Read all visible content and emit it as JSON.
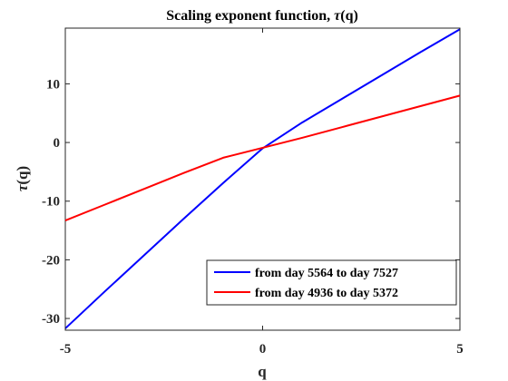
{
  "chart_data": {
    "type": "line",
    "title": "Scaling exponent function, τ(q)",
    "xlabel": "q",
    "ylabel": "τ(q)",
    "xlim": [
      -5,
      5
    ],
    "ylim": [
      -32,
      19.5
    ],
    "xticks": [
      -5,
      0,
      5
    ],
    "xtick_labels": [
      "-5",
      "0",
      "5"
    ],
    "yticks": [
      -30,
      -20,
      -10,
      0,
      10
    ],
    "ytick_labels": [
      "-30",
      "-20",
      "-10",
      "0",
      "10"
    ],
    "grid": false,
    "legend_position": "bottom-right",
    "series": [
      {
        "name": "from day 5564 to day 7527",
        "color": "#0000ff",
        "x": [
          -5,
          -4,
          -3,
          -2,
          -1,
          0,
          1,
          2,
          3,
          4,
          5
        ],
        "y": [
          -31.7,
          -25.4,
          -19.2,
          -13.0,
          -6.9,
          -1.0,
          3.4,
          7.4,
          11.4,
          15.4,
          19.3
        ]
      },
      {
        "name": "from day 4936 to day 5372",
        "color": "#ff0000",
        "x": [
          -5,
          -4,
          -3,
          -2,
          -1,
          0,
          1,
          2,
          3,
          4,
          5
        ],
        "y": [
          -13.3,
          -10.6,
          -7.9,
          -5.2,
          -2.6,
          -0.9,
          0.8,
          2.6,
          4.4,
          6.2,
          8.0
        ]
      }
    ]
  }
}
